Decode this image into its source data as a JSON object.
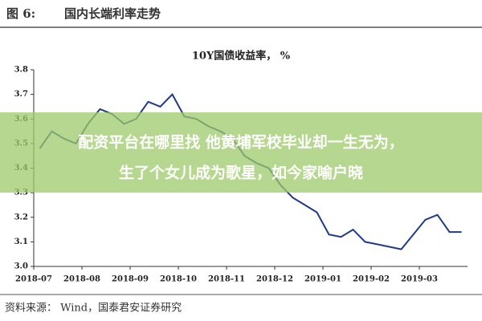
{
  "header": {
    "figure": "图 6:",
    "title": "国内长端利率走势"
  },
  "chart_data": {
    "type": "line",
    "title": "10Y国债收益率， %",
    "categories": [
      "2018-07",
      null,
      null,
      null,
      "2018-08",
      null,
      null,
      null,
      "2018-09",
      null,
      null,
      null,
      "2018-10",
      null,
      null,
      null,
      "2018-11",
      null,
      null,
      null,
      "2018-12",
      null,
      null,
      null,
      "2019-01",
      null,
      null,
      null,
      "2019-02",
      null,
      null,
      null,
      "2019-03",
      null,
      null,
      null
    ],
    "values": [
      3.48,
      3.55,
      3.52,
      3.5,
      3.58,
      3.64,
      3.62,
      3.58,
      3.6,
      3.67,
      3.65,
      3.7,
      3.61,
      3.6,
      3.57,
      3.55,
      3.52,
      3.45,
      3.42,
      3.4,
      3.33,
      3.28,
      3.25,
      3.22,
      3.13,
      3.12,
      3.15,
      3.1,
      3.09,
      3.08,
      3.07,
      3.13,
      3.19,
      3.21,
      3.14,
      3.14
    ],
    "color": "#1f3a8a",
    "ylim": [
      3.0,
      3.8
    ],
    "yticks": [
      {
        "value": 3,
        "label": "3.0"
      },
      3.1,
      3.2,
      3.3,
      3.4,
      3.5,
      3.6,
      3.7,
      3.8
    ]
  },
  "source": "资料来源： Wind，国泰君安证券研究",
  "overlay": [
    "配资平台在哪里找 他黄埔军校毕业却一生无为，",
    "生了个女儿成为歌星，如今家喻户晓"
  ]
}
